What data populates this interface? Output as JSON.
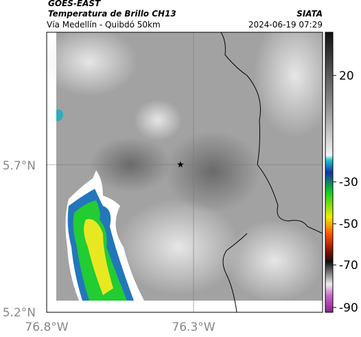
{
  "header": {
    "satellite": "GOES-EAST",
    "product": "Temperatura de Brillo CH13",
    "source": "SIATA",
    "region": "Vía Medellín - Quibdó 50km",
    "datetime": "2024-06-19 07:29"
  },
  "axes": {
    "yticks": [
      "5.7°N",
      "5.2°N"
    ],
    "xticks": [
      "76.8°W",
      "76.3°W"
    ]
  },
  "colorbar": {
    "ticks": [
      20,
      -30,
      -50,
      -70,
      -90
    ]
  }
}
